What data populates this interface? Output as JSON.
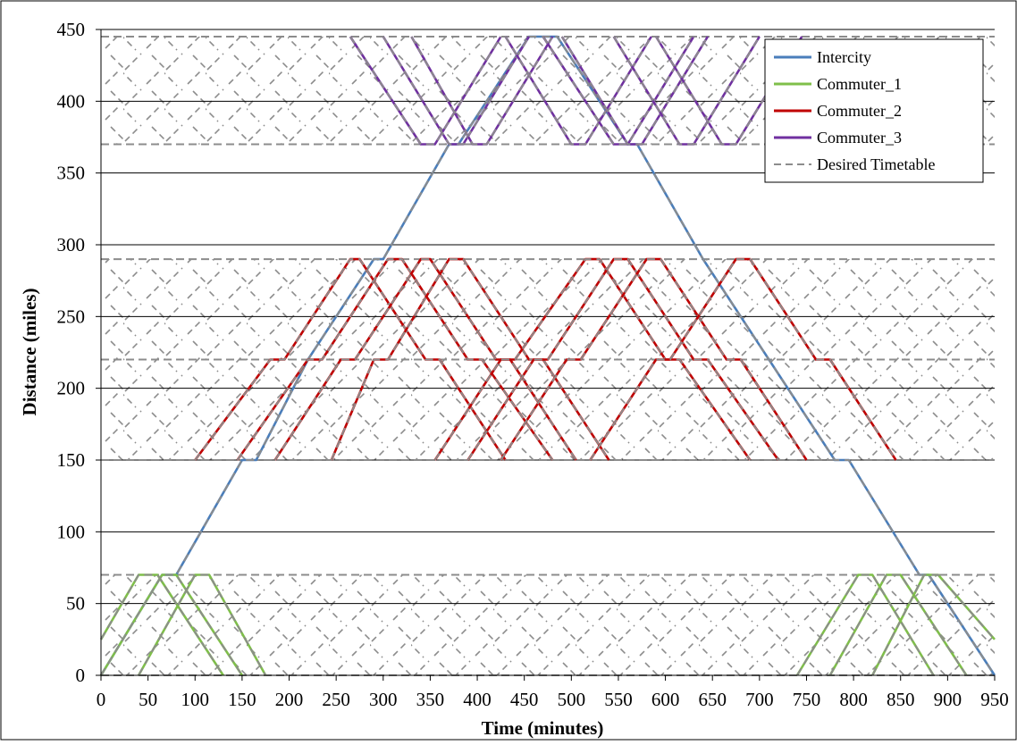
{
  "chart_data": {
    "type": "line",
    "xlabel": "Time (minutes)",
    "ylabel": "Distance (miles)",
    "xlim": [
      0,
      950
    ],
    "ylim": [
      0,
      450
    ],
    "xticks": [
      0,
      50,
      100,
      150,
      200,
      250,
      300,
      350,
      400,
      450,
      500,
      550,
      600,
      650,
      700,
      750,
      800,
      850,
      900,
      950
    ],
    "yticks": [
      0,
      50,
      100,
      150,
      200,
      250,
      300,
      350,
      400,
      450
    ],
    "grid": "horizontal",
    "legend_position": "top-right",
    "colors": {
      "Intercity": "#4a7ebb",
      "Commuter_1": "#7fbf4a",
      "Commuter_2": "#c00000",
      "Commuter_3": "#7030a0",
      "Desired Timetable": "#8c8c8c"
    },
    "hatched_regions": [
      [
        0,
        70
      ],
      [
        150,
        290
      ],
      [
        370,
        445
      ]
    ],
    "dashed_levels": [
      0,
      70,
      150,
      220,
      290,
      370,
      445
    ],
    "legend": [
      "Intercity",
      "Commuter_1",
      "Commuter_2",
      "Commuter_3",
      "Desired Timetable"
    ],
    "series": [
      {
        "name": "Intercity",
        "lines": [
          [
            [
              0,
              0
            ],
            [
              65,
              70
            ],
            [
              80,
              70
            ],
            [
              150,
              150
            ],
            [
              165,
              150
            ],
            [
              220,
              220
            ],
            [
              290,
              290
            ],
            [
              300,
              290
            ],
            [
              370,
              370
            ],
            [
              380,
              370
            ],
            [
              455,
              445
            ],
            [
              485,
              445
            ],
            [
              560,
              370
            ],
            [
              570,
              370
            ],
            [
              640,
              290
            ],
            [
              710,
              220
            ],
            [
              780,
              150
            ],
            [
              795,
              150
            ],
            [
              870,
              70
            ],
            [
              880,
              70
            ],
            [
              950,
              0
            ]
          ]
        ]
      },
      {
        "name": "Commuter_1",
        "lines": [
          [
            [
              0,
              25
            ],
            [
              40,
              70
            ],
            [
              60,
              70
            ],
            [
              130,
              0
            ]
          ],
          [
            [
              40,
              0
            ],
            [
              100,
              70
            ],
            [
              115,
              70
            ],
            [
              175,
              0
            ]
          ],
          [
            [
              0,
              0
            ],
            [
              65,
              70
            ],
            [
              80,
              70
            ],
            [
              150,
              0
            ]
          ],
          [
            [
              775,
              0
            ],
            [
              835,
              70
            ],
            [
              850,
              70
            ],
            [
              920,
              0
            ]
          ],
          [
            [
              820,
              0
            ],
            [
              875,
              70
            ],
            [
              890,
              70
            ],
            [
              950,
              25
            ]
          ],
          [
            [
              740,
              0
            ],
            [
              805,
              70
            ],
            [
              820,
              70
            ],
            [
              885,
              0
            ]
          ]
        ]
      },
      {
        "name": "Commuter_2",
        "lines": [
          [
            [
              100,
              150
            ],
            [
              180,
              220
            ],
            [
              195,
              220
            ],
            [
              265,
              290
            ],
            [
              275,
              290
            ],
            [
              345,
              220
            ],
            [
              360,
              220
            ],
            [
              430,
              150
            ]
          ],
          [
            [
              145,
              150
            ],
            [
              220,
              220
            ],
            [
              235,
              220
            ],
            [
              305,
              290
            ],
            [
              320,
              290
            ],
            [
              390,
              220
            ],
            [
              405,
              220
            ],
            [
              480,
              150
            ]
          ],
          [
            [
              185,
              150
            ],
            [
              255,
              220
            ],
            [
              270,
              220
            ],
            [
              340,
              290
            ],
            [
              350,
              290
            ],
            [
              420,
              220
            ],
            [
              435,
              220
            ],
            [
              505,
              150
            ]
          ],
          [
            [
              245,
              150
            ],
            [
              290,
              220
            ],
            [
              305,
              220
            ],
            [
              370,
              290
            ],
            [
              385,
              290
            ],
            [
              455,
              220
            ],
            [
              470,
              220
            ],
            [
              540,
              150
            ]
          ],
          [
            [
              355,
              150
            ],
            [
              425,
              220
            ],
            [
              440,
              220
            ],
            [
              515,
              290
            ],
            [
              530,
              290
            ],
            [
              600,
              220
            ],
            [
              615,
              220
            ],
            [
              690,
              150
            ]
          ],
          [
            [
              390,
              150
            ],
            [
              460,
              220
            ],
            [
              475,
              220
            ],
            [
              545,
              290
            ],
            [
              560,
              290
            ],
            [
              630,
              220
            ],
            [
              645,
              220
            ],
            [
              720,
              150
            ]
          ],
          [
            [
              425,
              150
            ],
            [
              495,
              220
            ],
            [
              510,
              220
            ],
            [
              580,
              290
            ],
            [
              595,
              290
            ],
            [
              665,
              220
            ],
            [
              680,
              220
            ],
            [
              750,
              150
            ]
          ],
          [
            [
              520,
              150
            ],
            [
              590,
              220
            ],
            [
              605,
              220
            ],
            [
              675,
              290
            ],
            [
              690,
              290
            ],
            [
              760,
              220
            ],
            [
              775,
              220
            ],
            [
              845,
              150
            ]
          ]
        ]
      },
      {
        "name": "Commuter_3",
        "lines": [
          [
            [
              265,
              445
            ],
            [
              340,
              370
            ],
            [
              355,
              370
            ],
            [
              425,
              445
            ]
          ],
          [
            [
              300,
              445
            ],
            [
              370,
              370
            ],
            [
              385,
              370
            ],
            [
              455,
              445
            ]
          ],
          [
            [
              330,
              445
            ],
            [
              395,
              370
            ],
            [
              410,
              370
            ],
            [
              480,
              445
            ]
          ],
          [
            [
              430,
              445
            ],
            [
              500,
              370
            ],
            [
              515,
              370
            ],
            [
              585,
              445
            ]
          ],
          [
            [
              470,
              445
            ],
            [
              545,
              370
            ],
            [
              560,
              370
            ],
            [
              630,
              445
            ]
          ],
          [
            [
              490,
              445
            ],
            [
              560,
              370
            ],
            [
              575,
              370
            ],
            [
              645,
              445
            ]
          ],
          [
            [
              545,
              445
            ],
            [
              615,
              370
            ],
            [
              630,
              370
            ],
            [
              700,
              445
            ]
          ],
          [
            [
              590,
              445
            ],
            [
              660,
              370
            ],
            [
              675,
              370
            ],
            [
              745,
              445
            ]
          ]
        ]
      }
    ]
  }
}
